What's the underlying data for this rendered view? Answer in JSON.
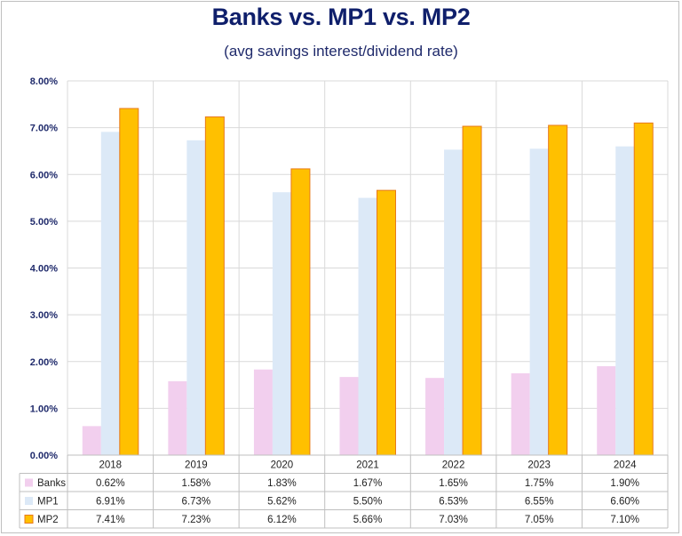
{
  "chart_data": {
    "type": "bar",
    "title": "Banks vs. MP1 vs. MP2",
    "subtitle": "(avg savings interest/dividend rate)",
    "categories": [
      "2018",
      "2019",
      "2020",
      "2021",
      "2022",
      "2023",
      "2024"
    ],
    "series": [
      {
        "name": "Banks",
        "values": [
          0.62,
          1.58,
          1.83,
          1.67,
          1.65,
          1.75,
          1.9
        ],
        "color": "#f2cfee"
      },
      {
        "name": "MP1",
        "values": [
          6.91,
          6.73,
          5.62,
          5.5,
          6.53,
          6.55,
          6.6
        ],
        "color": "#dce9f7"
      },
      {
        "name": "MP2",
        "values": [
          7.41,
          7.23,
          6.12,
          5.66,
          7.03,
          7.05,
          7.1
        ],
        "color": "#ffc000",
        "stroke": "#e87a1a"
      }
    ],
    "table": [
      [
        "0.62%",
        "1.58%",
        "1.83%",
        "1.67%",
        "1.65%",
        "1.75%",
        "1.90%"
      ],
      [
        "6.91%",
        "6.73%",
        "5.62%",
        "5.50%",
        "6.53%",
        "6.55%",
        "6.60%"
      ],
      [
        "7.41%",
        "7.23%",
        "6.12%",
        "5.66%",
        "7.03%",
        "7.05%",
        "7.10%"
      ]
    ],
    "yticks": [
      "0.00%",
      "1.00%",
      "2.00%",
      "3.00%",
      "4.00%",
      "5.00%",
      "6.00%",
      "7.00%",
      "8.00%"
    ],
    "ylim": [
      0,
      8
    ],
    "grid": true,
    "legend": "data-table"
  }
}
